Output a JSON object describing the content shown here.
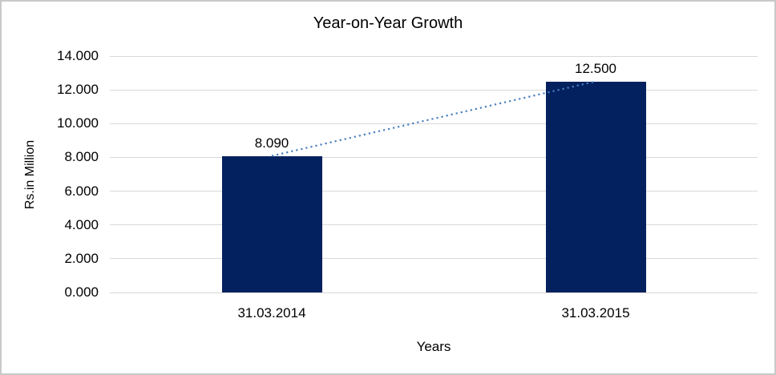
{
  "chart_data": {
    "type": "bar",
    "title": "Year-on-Year Growth",
    "xlabel": "Years",
    "ylabel": "Rs.in Million",
    "categories": [
      "31.03.2014",
      "31.03.2015"
    ],
    "values": [
      8.09,
      12.5
    ],
    "value_labels": [
      "8.090",
      "12.500"
    ],
    "ylim": [
      0,
      14
    ],
    "yticks": [
      0,
      2,
      4,
      6,
      8,
      10,
      12,
      14
    ],
    "ytick_labels": [
      "0.000",
      "2.000",
      "4.000",
      "6.000",
      "8.000",
      "10.000",
      "12.000",
      "14.000"
    ],
    "grid": true,
    "legend": "none",
    "trendline": {
      "style": "dotted",
      "connects": "bar tops"
    },
    "colors": {
      "bar": "#02215E",
      "trendline": "#4A7FC1",
      "gridline": "#D9D9D9",
      "frame_border": "#C9C9C9",
      "text": "#000000"
    }
  }
}
